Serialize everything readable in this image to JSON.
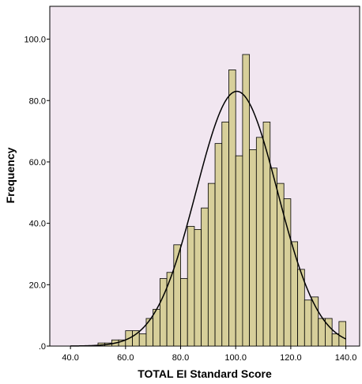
{
  "chart_data": {
    "type": "bar",
    "title": "",
    "xlabel": "TOTAL EI Standard Score",
    "ylabel": "Frequency",
    "xlim": [
      32.5,
      145.0
    ],
    "ylim": [
      0,
      110.7
    ],
    "x_ticks": [
      "40.0",
      "60.0",
      "80.0",
      "100.0",
      "120.0",
      "140.0"
    ],
    "y_ticks": [
      ".0",
      "20.0",
      "40.0",
      "60.0",
      "80.0",
      "100.0"
    ],
    "bin_width": 2.5,
    "bins": [
      {
        "start": 50.0,
        "value": 1
      },
      {
        "start": 52.5,
        "value": 1
      },
      {
        "start": 55.0,
        "value": 2
      },
      {
        "start": 57.5,
        "value": 2
      },
      {
        "start": 60.0,
        "value": 5
      },
      {
        "start": 62.5,
        "value": 5
      },
      {
        "start": 65.0,
        "value": 4
      },
      {
        "start": 67.5,
        "value": 9
      },
      {
        "start": 70.0,
        "value": 12
      },
      {
        "start": 72.5,
        "value": 22
      },
      {
        "start": 75.0,
        "value": 24
      },
      {
        "start": 77.5,
        "value": 33
      },
      {
        "start": 80.0,
        "value": 22
      },
      {
        "start": 82.5,
        "value": 39
      },
      {
        "start": 85.0,
        "value": 38
      },
      {
        "start": 87.5,
        "value": 45
      },
      {
        "start": 90.0,
        "value": 53
      },
      {
        "start": 92.5,
        "value": 66
      },
      {
        "start": 95.0,
        "value": 73
      },
      {
        "start": 97.5,
        "value": 90
      },
      {
        "start": 100.0,
        "value": 62
      },
      {
        "start": 102.5,
        "value": 95
      },
      {
        "start": 105.0,
        "value": 64
      },
      {
        "start": 107.5,
        "value": 68
      },
      {
        "start": 110.0,
        "value": 73
      },
      {
        "start": 112.5,
        "value": 58
      },
      {
        "start": 115.0,
        "value": 53
      },
      {
        "start": 117.5,
        "value": 48
      },
      {
        "start": 120.0,
        "value": 34
      },
      {
        "start": 122.5,
        "value": 25
      },
      {
        "start": 125.0,
        "value": 15
      },
      {
        "start": 127.5,
        "value": 16
      },
      {
        "start": 130.0,
        "value": 9
      },
      {
        "start": 132.5,
        "value": 9
      },
      {
        "start": 135.0,
        "value": 4
      },
      {
        "start": 137.5,
        "value": 8
      }
    ],
    "normal_curve": {
      "mean": 100.4,
      "sd": 14.8,
      "peak": 83.0
    },
    "grid": false,
    "legend": "none",
    "colors": {
      "plot_background": "#f1e6f0",
      "bar_fill": "#d7cf9a",
      "bar_stroke": "#000000",
      "curve": "#000000"
    }
  }
}
